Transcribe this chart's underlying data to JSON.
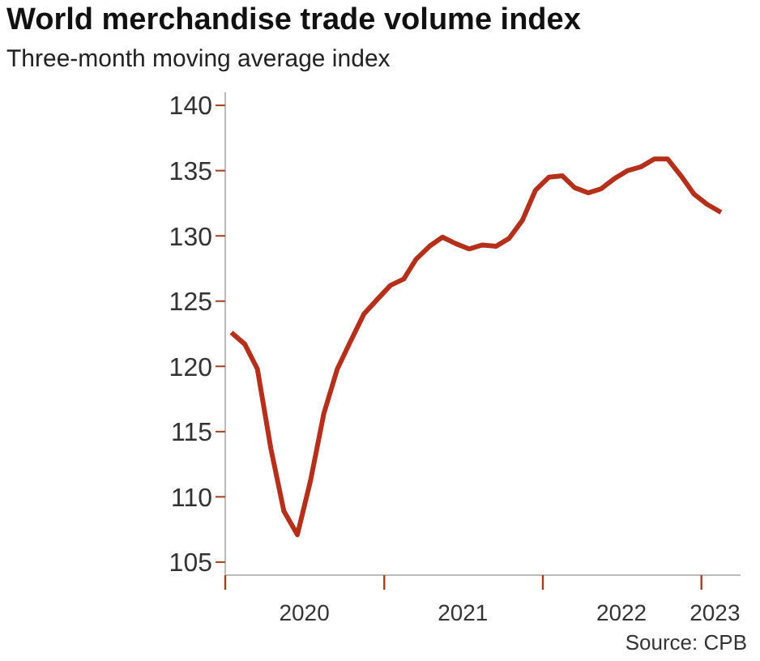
{
  "chart_data": {
    "type": "line",
    "title": "World merchandise trade volume index",
    "subtitle": "Three-month moving average index",
    "annotations": [
      "Source: CPB"
    ],
    "x": [
      "2020-01-15",
      "2020-02-15",
      "2020-03-15",
      "2020-04-15",
      "2020-05-15",
      "2020-06-15",
      "2020-07-15",
      "2020-08-15",
      "2020-09-15",
      "2020-10-15",
      "2020-11-15",
      "2020-12-15",
      "2021-01-15",
      "2021-02-15",
      "2021-03-15",
      "2021-04-15",
      "2021-05-15",
      "2021-06-15",
      "2021-07-15",
      "2021-08-15",
      "2021-09-15",
      "2021-10-15",
      "2021-11-15",
      "2021-12-15",
      "2022-01-15",
      "2022-02-15",
      "2022-03-15",
      "2022-04-15",
      "2022-05-15",
      "2022-06-15",
      "2022-07-15",
      "2022-08-15",
      "2022-09-15",
      "2022-10-15",
      "2022-11-15",
      "2022-12-15",
      "2023-01-15",
      "2023-02-15"
    ],
    "series": [
      {
        "color": "#b5301b",
        "values": [
          122.6,
          121.7,
          119.8,
          113.7,
          108.9,
          107.1,
          111.2,
          116.4,
          119.8,
          121.9,
          124.0,
          125.1,
          126.2,
          126.7,
          128.2,
          129.2,
          129.9,
          129.4,
          129.0,
          129.3,
          129.2,
          129.8,
          131.2,
          133.5,
          134.5,
          134.6,
          133.7,
          133.3,
          133.6,
          134.4,
          135.0,
          135.3,
          135.9,
          135.9,
          134.6,
          133.2,
          132.4,
          131.8
        ]
      }
    ],
    "xlim": [
      "2020-01",
      "2023-04"
    ],
    "xticks": [
      {
        "value": "2020-01",
        "label": null
      },
      {
        "value": "2020-07",
        "label": "2020"
      },
      {
        "value": "2021-01",
        "label": null
      },
      {
        "value": "2021-07",
        "label": "2021"
      },
      {
        "value": "2022-01",
        "label": null
      },
      {
        "value": "2022-07",
        "label": "2022"
      },
      {
        "value": "2023-01",
        "label": null
      },
      {
        "value": "2023-02",
        "label": "2023"
      }
    ],
    "ylim": [
      104,
      141
    ],
    "yticks": [
      105,
      110,
      115,
      120,
      125,
      130,
      135,
      140
    ],
    "grid": false,
    "legend": false,
    "marker": "none",
    "line_style": "solid"
  }
}
